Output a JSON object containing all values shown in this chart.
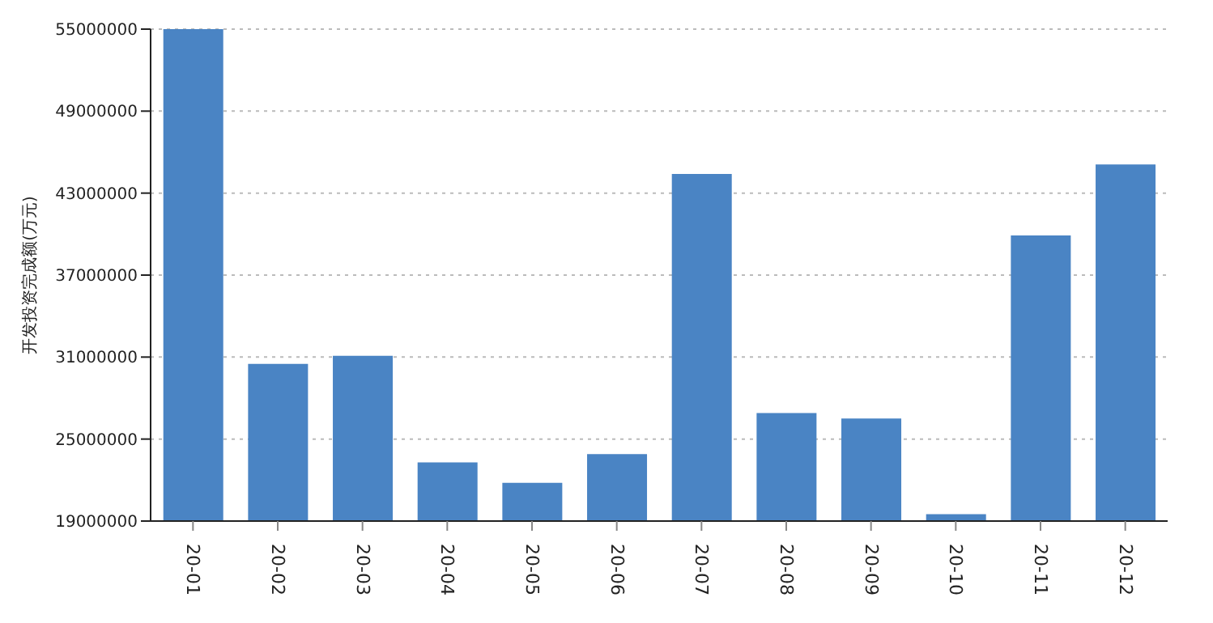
{
  "chart_data": {
    "type": "bar",
    "ylabel": "开发投资完成额(万元)",
    "categories": [
      "20-01",
      "20-02",
      "20-03",
      "20-04",
      "20-05",
      "20-06",
      "20-07",
      "20-08",
      "20-09",
      "20-10",
      "20-11",
      "20-12"
    ],
    "values": [
      55000000,
      30500000,
      31100000,
      23300000,
      21800000,
      23900000,
      44400000,
      26900000,
      26500000,
      19500000,
      39900000,
      45100000
    ],
    "color": "#4a84c4",
    "ylim": [
      19000000,
      55000000
    ],
    "yticks": [
      19000000,
      25000000,
      31000000,
      37000000,
      43000000,
      49000000,
      55000000
    ],
    "grid": "y"
  }
}
